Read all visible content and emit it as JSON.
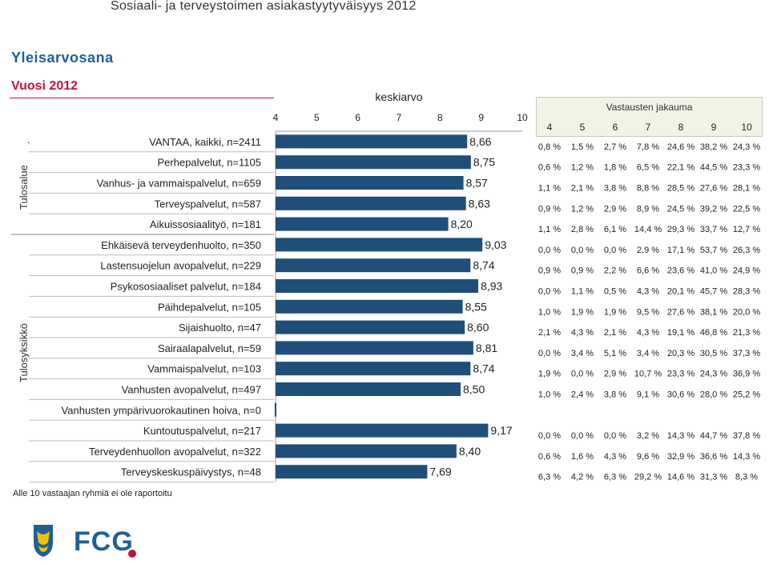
{
  "header": {
    "title": "Sosiaali- ja terveystoimen asiakastyytyväisyys 2012"
  },
  "section_title": "Yleisarvosana",
  "year_title": "Vuosi 2012",
  "footnote": "Alle 10 vastaajan ryhmiä ei ole raportoitu",
  "group_labels": {
    "tulosalue": "Tulosalue",
    "tulosyksikko": "Tulosyksikkö"
  },
  "distribution": {
    "title": "Vastausten jakauma",
    "headers": [
      "4",
      "5",
      "6",
      "7",
      "8",
      "9",
      "10"
    ]
  },
  "logo": {
    "text": "FCG"
  },
  "chart_data": {
    "type": "bar",
    "orientation": "horizontal",
    "xlabel": "keskiarvo",
    "xlim": [
      4,
      10
    ],
    "xticks": [
      "4",
      "5",
      "6",
      "7",
      "8",
      "9",
      "10"
    ],
    "bar_color": "#1f4e79",
    "categories": [
      "VANTAA, kaikki, n=2411",
      "Perhepalvelut, n=1105",
      "Vanhus- ja vammaispalvelut, n=659",
      "Terveyspalvelut, n=587",
      "Aikuissosiaalityö, n=181",
      "Ehkäisevä terveydenhuolto, n=350",
      "Lastensuojelun avopalvelut, n=229",
      "Psykososiaaliset palvelut, n=184",
      "Päihdepalvelut, n=105",
      "Sijaishuolto, n=47",
      "Sairaalapalvelut, n=59",
      "Vammaispalvelut, n=103",
      "Vanhusten avopalvelut, n=497",
      "Vanhusten ympärivuorokautinen hoiva, n=0",
      "Kuntoutuspalvelut, n=217",
      "Terveydenhuollon avopalvelut, n=322",
      "Terveyskeskuspäivystys, n=48"
    ],
    "values": [
      8.66,
      8.75,
      8.57,
      8.63,
      8.2,
      9.03,
      8.74,
      8.93,
      8.55,
      8.6,
      8.81,
      8.74,
      8.5,
      null,
      9.17,
      8.4,
      7.69
    ],
    "value_labels": [
      "8,66",
      "8,75",
      "8,57",
      "8,63",
      "8,20",
      "9,03",
      "8,74",
      "8,93",
      "8,55",
      "8,60",
      "8,81",
      "8,74",
      "8,50",
      "",
      "9,17",
      "8,40",
      "7,69"
    ],
    "distribution_rows": [
      [
        "0,8 %",
        "1,5 %",
        "2,7 %",
        "7,8 %",
        "24,6 %",
        "38,2 %",
        "24,3 %"
      ],
      [
        "0,6 %",
        "1,2 %",
        "1,8 %",
        "6,5 %",
        "22,1 %",
        "44,5 %",
        "23,3 %"
      ],
      [
        "1,1 %",
        "2,1 %",
        "3,8 %",
        "8,8 %",
        "28,5 %",
        "27,6 %",
        "28,1 %"
      ],
      [
        "0,9 %",
        "1,2 %",
        "2,9 %",
        "8,9 %",
        "24,5 %",
        "39,2 %",
        "22,5 %"
      ],
      [
        "1,1 %",
        "2,8 %",
        "6,1 %",
        "14,4 %",
        "29,3 %",
        "33,7 %",
        "12,7 %"
      ],
      [
        "0,0 %",
        "0,0 %",
        "0,0 %",
        "2,9 %",
        "17,1 %",
        "53,7 %",
        "26,3 %"
      ],
      [
        "0,9 %",
        "0,9 %",
        "2,2 %",
        "6,6 %",
        "23,6 %",
        "41,0 %",
        "24,9 %"
      ],
      [
        "0,0 %",
        "1,1 %",
        "0,5 %",
        "4,3 %",
        "20,1 %",
        "45,7 %",
        "28,3 %"
      ],
      [
        "1,0 %",
        "1,9 %",
        "1,9 %",
        "9,5 %",
        "27,6 %",
        "38,1 %",
        "20,0 %"
      ],
      [
        "2,1 %",
        "4,3 %",
        "2,1 %",
        "4,3 %",
        "19,1 %",
        "46,8 %",
        "21,3 %"
      ],
      [
        "0,0 %",
        "3,4 %",
        "5,1 %",
        "3,4 %",
        "20,3 %",
        "30,5 %",
        "37,3 %"
      ],
      [
        "1,9 %",
        "0,0 %",
        "2,9 %",
        "10,7 %",
        "23,3 %",
        "24,3 %",
        "36,9 %"
      ],
      [
        "1,0 %",
        "2,4 %",
        "3,8 %",
        "9,1 %",
        "30,6 %",
        "28,0 %",
        "25,2 %"
      ],
      null,
      [
        "0,0 %",
        "0,0 %",
        "0,0 %",
        "3,2 %",
        "14,3 %",
        "44,7 %",
        "37,8 %"
      ],
      [
        "0,6 %",
        "1,6 %",
        "4,3 %",
        "9,6 %",
        "32,9 %",
        "36,6 %",
        "14,3 %"
      ],
      [
        "6,3 %",
        "4,2 %",
        "6,3 %",
        "29,2 %",
        "14,6 %",
        "31,3 %",
        "8,3 %"
      ]
    ]
  }
}
